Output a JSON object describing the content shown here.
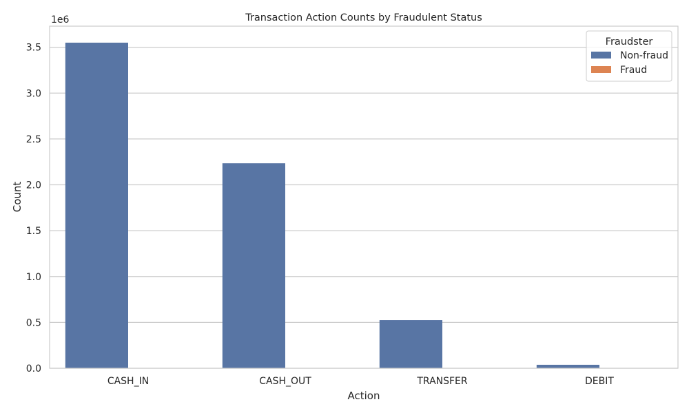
{
  "chart_data": {
    "type": "bar",
    "title": "Transaction Action Counts by Fraudulent Status",
    "xlabel": "Action",
    "ylabel": "Count",
    "y_offset_label": "1e6",
    "categories": [
      "CASH_IN",
      "CASH_OUT",
      "TRANSFER",
      "DEBIT"
    ],
    "series": [
      {
        "name": "Non-fraud",
        "color": "#5875a4",
        "values": [
          3550000,
          2235000,
          525000,
          38000
        ]
      },
      {
        "name": "Fraud",
        "color": "#dd8452",
        "values": [
          0,
          0,
          0,
          0
        ]
      }
    ],
    "ylim": [
      0,
      3730000
    ],
    "yticks": [
      0,
      500000,
      1000000,
      1500000,
      2000000,
      2500000,
      3000000,
      3500000
    ],
    "ytick_labels": [
      "0.0",
      "0.5",
      "1.0",
      "1.5",
      "2.0",
      "2.5",
      "3.0",
      "3.5"
    ],
    "grid": true,
    "legend": {
      "title": "Fraudster",
      "placement": "top-right"
    }
  }
}
